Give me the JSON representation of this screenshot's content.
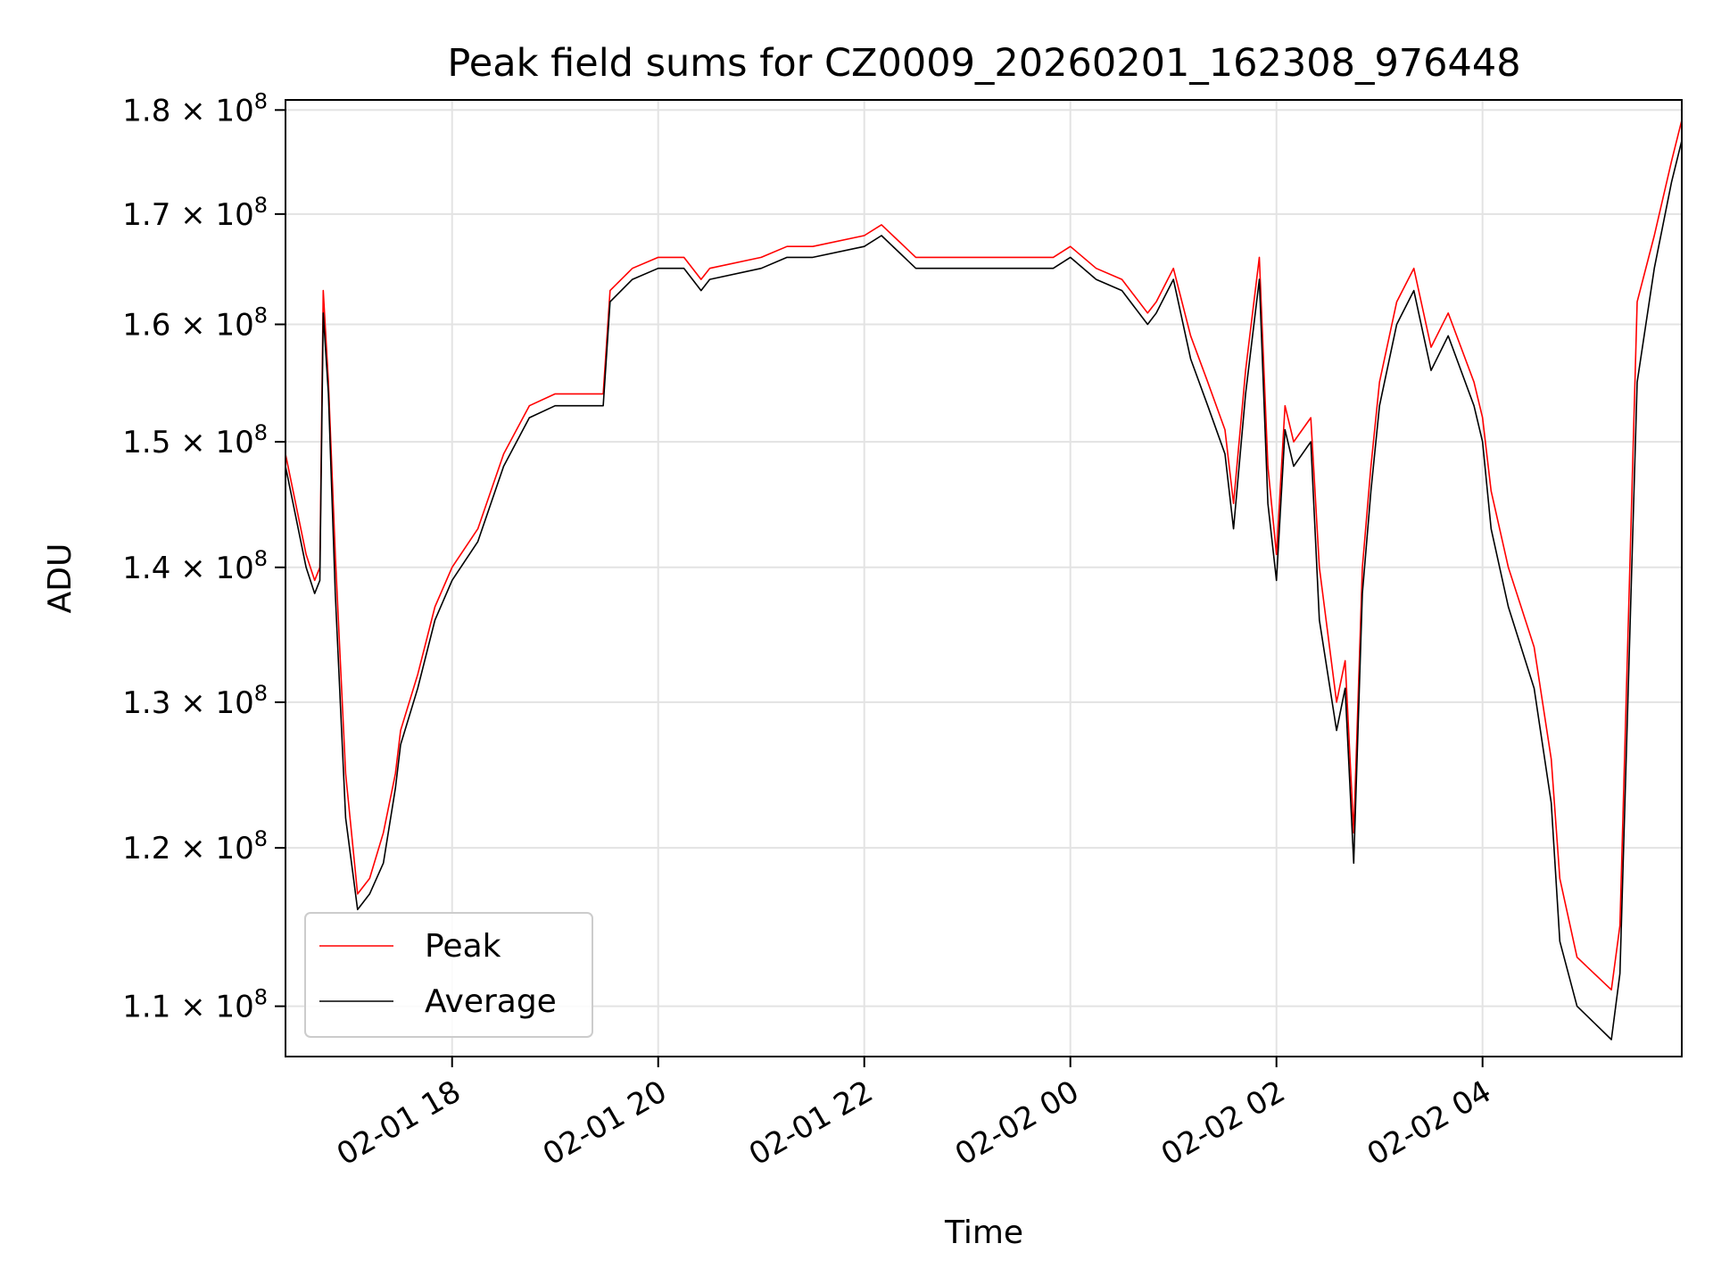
{
  "chart_data": {
    "type": "line",
    "title": "Peak field sums for CZ0009_20260201_162308_976448",
    "xlabel": "Time",
    "ylabel": "ADU",
    "y_scale": "log",
    "ylim": [
      107000000,
      181000000
    ],
    "xlim": [
      "2026-02-01 16:23",
      "2026-02-02 05:56"
    ],
    "grid": true,
    "legend_position": "lower-left",
    "x_ticks": [
      {
        "value": "2026-02-01 18:00",
        "label": "02-01 18"
      },
      {
        "value": "2026-02-01 20:00",
        "label": "02-01 20"
      },
      {
        "value": "2026-02-01 22:00",
        "label": "02-01 22"
      },
      {
        "value": "2026-02-02 00:00",
        "label": "02-02 00"
      },
      {
        "value": "2026-02-02 02:00",
        "label": "02-02 02"
      },
      {
        "value": "2026-02-02 04:00",
        "label": "02-02 04"
      }
    ],
    "y_ticks": [
      {
        "value": 110000000,
        "mantissa": "1.1",
        "base": "10",
        "exp": "8"
      },
      {
        "value": 120000000,
        "mantissa": "1.2",
        "base": "10",
        "exp": "8"
      },
      {
        "value": 130000000,
        "mantissa": "1.3",
        "base": "10",
        "exp": "8"
      },
      {
        "value": 140000000,
        "mantissa": "1.4",
        "base": "10",
        "exp": "8"
      },
      {
        "value": 150000000,
        "mantissa": "1.5",
        "base": "10",
        "exp": "8"
      },
      {
        "value": 160000000,
        "mantissa": "1.6",
        "base": "10",
        "exp": "8"
      },
      {
        "value": 170000000,
        "mantissa": "1.7",
        "base": "10",
        "exp": "8"
      },
      {
        "value": 180000000,
        "mantissa": "1.8",
        "base": "10",
        "exp": "8"
      }
    ],
    "series": [
      {
        "name": "Peak",
        "color": "#ff0000",
        "x": [
          "2026-02-01 16:23",
          "2026-02-01 16:35",
          "2026-02-01 16:40",
          "2026-02-01 16:43",
          "2026-02-01 16:45",
          "2026-02-01 16:48",
          "2026-02-01 16:52",
          "2026-02-01 16:58",
          "2026-02-01 17:05",
          "2026-02-01 17:12",
          "2026-02-01 17:20",
          "2026-02-01 17:27",
          "2026-02-01 17:30",
          "2026-02-01 17:40",
          "2026-02-01 17:50",
          "2026-02-01 18:00",
          "2026-02-01 18:15",
          "2026-02-01 18:30",
          "2026-02-01 18:45",
          "2026-02-01 19:00",
          "2026-02-01 19:15",
          "2026-02-01 19:28",
          "2026-02-01 19:32",
          "2026-02-01 19:45",
          "2026-02-01 20:00",
          "2026-02-01 20:15",
          "2026-02-01 20:25",
          "2026-02-01 20:30",
          "2026-02-01 21:00",
          "2026-02-01 21:15",
          "2026-02-01 21:30",
          "2026-02-01 22:00",
          "2026-02-01 22:10",
          "2026-02-01 22:30",
          "2026-02-01 23:00",
          "2026-02-01 23:30",
          "2026-02-01 23:50",
          "2026-02-02 00:00",
          "2026-02-02 00:15",
          "2026-02-02 00:30",
          "2026-02-02 00:45",
          "2026-02-02 00:50",
          "2026-02-02 01:00",
          "2026-02-02 01:10",
          "2026-02-02 01:20",
          "2026-02-02 01:30",
          "2026-02-02 01:35",
          "2026-02-02 01:42",
          "2026-02-02 01:50",
          "2026-02-02 01:55",
          "2026-02-02 02:00",
          "2026-02-02 02:05",
          "2026-02-02 02:10",
          "2026-02-02 02:20",
          "2026-02-02 02:25",
          "2026-02-02 02:35",
          "2026-02-02 02:40",
          "2026-02-02 02:45",
          "2026-02-02 02:50",
          "2026-02-02 02:55",
          "2026-02-02 03:00",
          "2026-02-02 03:10",
          "2026-02-02 03:20",
          "2026-02-02 03:30",
          "2026-02-02 03:40",
          "2026-02-02 03:55",
          "2026-02-02 04:00",
          "2026-02-02 04:05",
          "2026-02-02 04:15",
          "2026-02-02 04:30",
          "2026-02-02 04:40",
          "2026-02-02 04:45",
          "2026-02-02 04:55",
          "2026-02-02 05:05",
          "2026-02-02 05:15",
          "2026-02-02 05:20",
          "2026-02-02 05:30",
          "2026-02-02 05:40",
          "2026-02-02 05:50",
          "2026-02-02 05:56"
        ],
        "values": [
          149000000,
          141000000,
          139000000,
          140000000,
          163000000,
          155000000,
          141000000,
          125000000,
          117000000,
          118000000,
          121000000,
          125000000,
          128000000,
          132000000,
          137000000,
          140000000,
          143000000,
          149000000,
          153000000,
          154000000,
          154000000,
          154000000,
          163000000,
          165000000,
          166000000,
          166000000,
          164000000,
          165000000,
          166000000,
          167000000,
          167000000,
          168000000,
          169000000,
          166000000,
          166000000,
          166000000,
          166000000,
          167000000,
          165000000,
          164000000,
          161000000,
          162000000,
          165000000,
          159000000,
          155000000,
          151000000,
          145000000,
          156000000,
          166000000,
          148000000,
          141000000,
          153000000,
          150000000,
          152000000,
          140000000,
          130000000,
          133000000,
          121000000,
          140000000,
          148000000,
          155000000,
          162000000,
          165000000,
          158000000,
          161000000,
          155000000,
          152000000,
          146000000,
          140000000,
          134000000,
          126000000,
          118000000,
          113000000,
          112000000,
          111000000,
          115000000,
          162000000,
          168000000,
          175000000,
          179000000
        ]
      },
      {
        "name": "Average",
        "color": "#000000",
        "x": [
          "2026-02-01 16:23",
          "2026-02-01 16:35",
          "2026-02-01 16:40",
          "2026-02-01 16:43",
          "2026-02-01 16:45",
          "2026-02-01 16:48",
          "2026-02-01 16:52",
          "2026-02-01 16:58",
          "2026-02-01 17:05",
          "2026-02-01 17:12",
          "2026-02-01 17:20",
          "2026-02-01 17:27",
          "2026-02-01 17:30",
          "2026-02-01 17:40",
          "2026-02-01 17:50",
          "2026-02-01 18:00",
          "2026-02-01 18:15",
          "2026-02-01 18:30",
          "2026-02-01 18:45",
          "2026-02-01 19:00",
          "2026-02-01 19:15",
          "2026-02-01 19:28",
          "2026-02-01 19:32",
          "2026-02-01 19:45",
          "2026-02-01 20:00",
          "2026-02-01 20:15",
          "2026-02-01 20:25",
          "2026-02-01 20:30",
          "2026-02-01 21:00",
          "2026-02-01 21:15",
          "2026-02-01 21:30",
          "2026-02-01 22:00",
          "2026-02-01 22:10",
          "2026-02-01 22:30",
          "2026-02-01 23:00",
          "2026-02-01 23:30",
          "2026-02-01 23:50",
          "2026-02-02 00:00",
          "2026-02-02 00:15",
          "2026-02-02 00:30",
          "2026-02-02 00:45",
          "2026-02-02 00:50",
          "2026-02-02 01:00",
          "2026-02-02 01:10",
          "2026-02-02 01:20",
          "2026-02-02 01:30",
          "2026-02-02 01:35",
          "2026-02-02 01:42",
          "2026-02-02 01:50",
          "2026-02-02 01:55",
          "2026-02-02 02:00",
          "2026-02-02 02:05",
          "2026-02-02 02:10",
          "2026-02-02 02:20",
          "2026-02-02 02:25",
          "2026-02-02 02:35",
          "2026-02-02 02:40",
          "2026-02-02 02:45",
          "2026-02-02 02:50",
          "2026-02-02 02:55",
          "2026-02-02 03:00",
          "2026-02-02 03:10",
          "2026-02-02 03:20",
          "2026-02-02 03:30",
          "2026-02-02 03:40",
          "2026-02-02 03:55",
          "2026-02-02 04:00",
          "2026-02-02 04:05",
          "2026-02-02 04:15",
          "2026-02-02 04:30",
          "2026-02-02 04:40",
          "2026-02-02 04:45",
          "2026-02-02 04:55",
          "2026-02-02 05:05",
          "2026-02-02 05:15",
          "2026-02-02 05:20",
          "2026-02-02 05:30",
          "2026-02-02 05:40",
          "2026-02-02 05:50",
          "2026-02-02 05:56"
        ],
        "values": [
          148000000,
          140000000,
          138000000,
          139000000,
          161000000,
          154000000,
          138000000,
          122000000,
          116000000,
          117000000,
          119000000,
          124000000,
          127000000,
          131000000,
          136000000,
          139000000,
          142000000,
          148000000,
          152000000,
          153000000,
          153000000,
          153000000,
          162000000,
          164000000,
          165000000,
          165000000,
          163000000,
          164000000,
          165000000,
          166000000,
          166000000,
          167000000,
          168000000,
          165000000,
          165000000,
          165000000,
          165000000,
          166000000,
          164000000,
          163000000,
          160000000,
          161000000,
          164000000,
          157000000,
          153000000,
          149000000,
          143000000,
          154000000,
          164000000,
          145000000,
          139000000,
          151000000,
          148000000,
          150000000,
          136000000,
          128000000,
          131000000,
          119000000,
          138000000,
          146000000,
          153000000,
          160000000,
          163000000,
          156000000,
          159000000,
          153000000,
          150000000,
          143000000,
          137000000,
          131000000,
          123000000,
          114000000,
          110000000,
          109000000,
          108000000,
          112000000,
          155000000,
          165000000,
          173000000,
          177000000
        ]
      }
    ]
  }
}
